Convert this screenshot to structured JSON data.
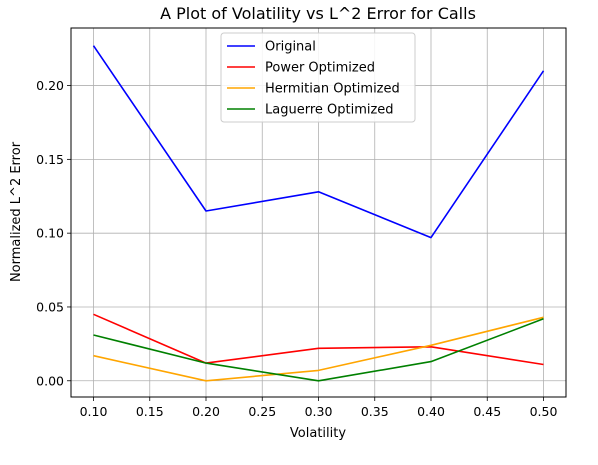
{
  "chart_data": {
    "type": "line",
    "title": "A Plot of Volatility vs L^2 Error for Calls",
    "xlabel": "Volatility",
    "ylabel": "Normalized L^2 Error",
    "x": [
      0.1,
      0.2,
      0.3,
      0.4,
      0.5
    ],
    "xlim": [
      0.08,
      0.52
    ],
    "ylim": [
      -0.011,
      0.239
    ],
    "xticks": [
      "0.10",
      "0.15",
      "0.20",
      "0.25",
      "0.30",
      "0.35",
      "0.40",
      "0.45",
      "0.50"
    ],
    "xtick_values": [
      0.1,
      0.15,
      0.2,
      0.25,
      0.3,
      0.35,
      0.4,
      0.45,
      0.5
    ],
    "yticks": [
      "0.00",
      "0.05",
      "0.10",
      "0.15",
      "0.20"
    ],
    "ytick_values": [
      0.0,
      0.05,
      0.1,
      0.15,
      0.2
    ],
    "grid": true,
    "legend_position": "top-center",
    "series": [
      {
        "name": "Original",
        "color": "#0000ff",
        "values": [
          0.227,
          0.115,
          0.128,
          0.097,
          0.21
        ]
      },
      {
        "name": "Power Optimized",
        "color": "#ff0000",
        "values": [
          0.045,
          0.012,
          0.022,
          0.023,
          0.011
        ]
      },
      {
        "name": "Hermitian Optimized",
        "color": "#ffa500",
        "values": [
          0.017,
          0.0,
          0.007,
          0.024,
          0.043
        ]
      },
      {
        "name": "Laguerre Optimized",
        "color": "#008000",
        "values": [
          0.031,
          0.012,
          0.0,
          0.013,
          0.042
        ]
      }
    ]
  }
}
